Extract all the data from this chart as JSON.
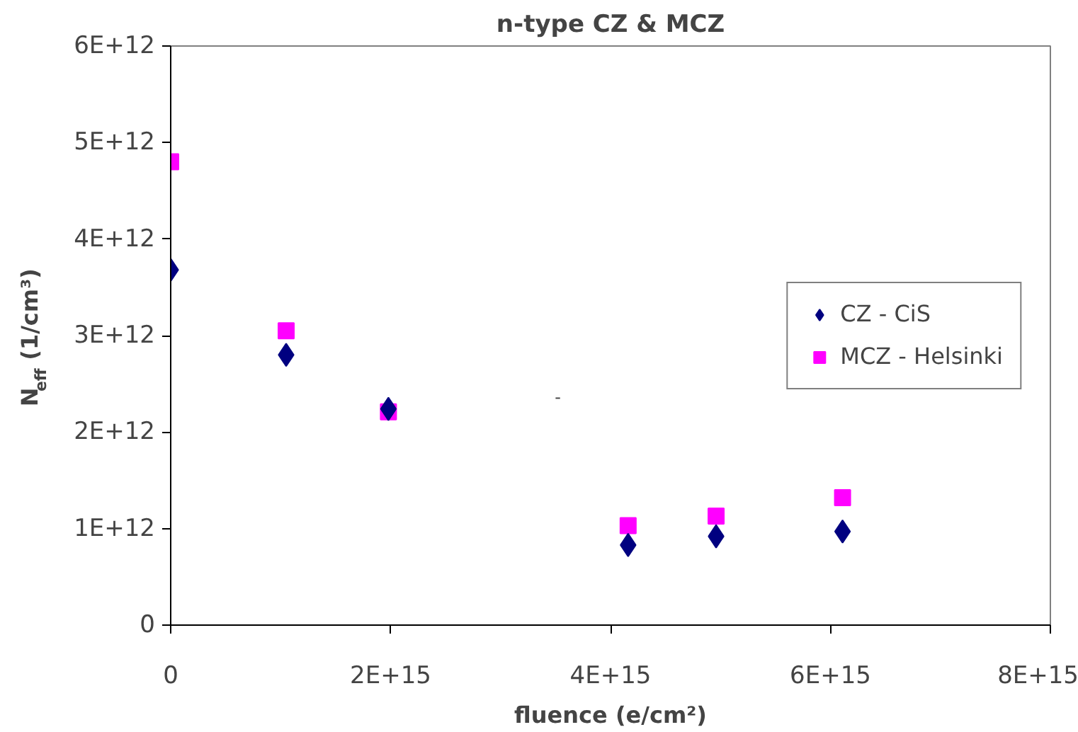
{
  "chart_data": {
    "type": "scatter",
    "title": "n-type CZ & MCZ",
    "xlabel": "fluence (e/cm²)",
    "ylabel": "N$_{eff}$ (1/cm³)",
    "xlim": [
      0,
      8000000000000000.0
    ],
    "xticks": [
      {
        "value": 0,
        "label": "0"
      },
      {
        "value": 2000000000000000.0,
        "label": "2E+15"
      },
      {
        "value": 4000000000000000.0,
        "label": "4E+15"
      },
      {
        "value": 6000000000000000.0,
        "label": "6E+15"
      },
      {
        "value": 8000000000000000.0,
        "label": "8E+15"
      }
    ],
    "ylim": [
      0,
      6000000000000.0
    ],
    "yticks": [
      {
        "value": 0,
        "label": "0"
      },
      {
        "value": 1000000000000.0,
        "label": "1E+12"
      },
      {
        "value": 2000000000000.0,
        "label": "2E+12"
      },
      {
        "value": 3000000000000.0,
        "label": "3E+12"
      },
      {
        "value": 4000000000000.0,
        "label": "4E+12"
      },
      {
        "value": 5000000000000.0,
        "label": "5E+12"
      },
      {
        "value": 6000000000000.0,
        "label": "6E+12"
      }
    ],
    "grid": false,
    "legend": "right",
    "annotations": [
      "-"
    ],
    "series": [
      {
        "name": "CZ - CiS",
        "color": "#000080",
        "marker": "diamond",
        "x": [
          0,
          1050000000000000.0,
          1980000000000000.0,
          4160000000000000.0,
          4960000000000000.0,
          6110000000000000.0
        ],
        "values": [
          3680000000000.0,
          2800000000000.0,
          2240000000000.0,
          830000000000.0,
          920000000000.0,
          970000000000.0
        ]
      },
      {
        "name": "MCZ - Helsinki",
        "color": "#ff00ff",
        "marker": "square",
        "x": [
          0,
          1050000000000000.0,
          1980000000000000.0,
          4160000000000000.0,
          4960000000000000.0,
          6110000000000000.0
        ],
        "values": [
          4800000000000.0,
          3050000000000.0,
          2210000000000.0,
          1030000000000.0,
          1130000000000.0,
          1320000000000.0
        ]
      }
    ]
  }
}
